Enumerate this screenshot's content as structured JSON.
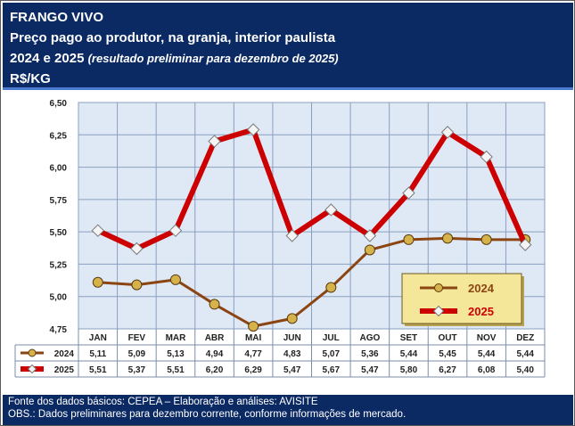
{
  "header": {
    "title": "FRANGO VIVO",
    "subtitle": "Preço pago ao produtor, na granja, interior paulista",
    "years": "2024 e 2025",
    "note": "(resultado preliminar para dezembro de 2025)",
    "unit": "R$/KG"
  },
  "footer": {
    "source": "Fonte dos dados básicos: CEPEA – Elaboração e análises: AVISITE",
    "obs": "OBS.: Dados preliminares para dezembro corrente, conforme informações de mercado."
  },
  "chart_data": {
    "type": "line",
    "categories": [
      "JAN",
      "FEV",
      "MAR",
      "ABR",
      "MAI",
      "JUN",
      "JUL",
      "AGO",
      "SET",
      "OUT",
      "NOV",
      "DEZ"
    ],
    "series": [
      {
        "name": "2024",
        "values": [
          5.11,
          5.09,
          5.13,
          4.94,
          4.77,
          4.83,
          5.07,
          5.36,
          5.44,
          5.45,
          5.44,
          5.44
        ],
        "labels": [
          "5,11",
          "5,09",
          "5,13",
          "4,94",
          "4,77",
          "4,83",
          "5,07",
          "5,36",
          "5,44",
          "5,45",
          "5,44",
          "5,44"
        ],
        "color": "#8b4513"
      },
      {
        "name": "2025",
        "values": [
          5.51,
          5.37,
          5.51,
          6.2,
          6.29,
          5.47,
          5.67,
          5.47,
          5.8,
          6.27,
          6.08,
          5.4
        ],
        "labels": [
          "5,51",
          "5,37",
          "5,51",
          "6,20",
          "6,29",
          "5,47",
          "5,67",
          "5,47",
          "5,80",
          "6,27",
          "6,08",
          "5,40"
        ],
        "color": "#cc0000"
      }
    ],
    "y_ticks": [
      "4,75",
      "5,00",
      "5,25",
      "5,50",
      "5,75",
      "6,00",
      "6,25",
      "6,50"
    ],
    "ylim": [
      4.75,
      6.5
    ],
    "grid": true,
    "legend": "bottom-right",
    "plot_bg": "#dfe9f5"
  }
}
